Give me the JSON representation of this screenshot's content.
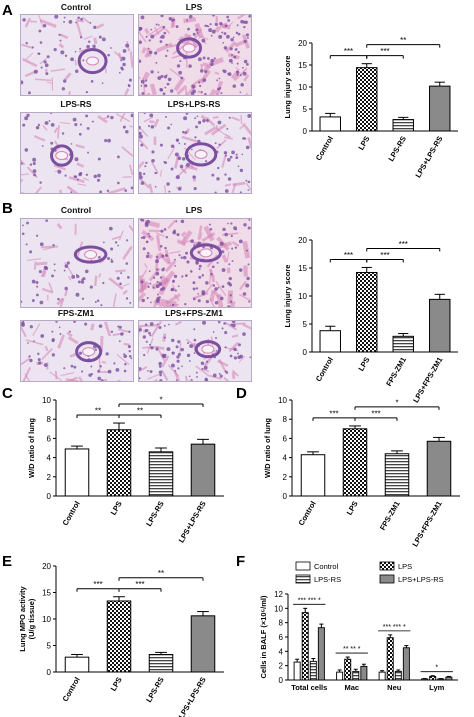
{
  "panels": {
    "A": {
      "letter": "A",
      "images": [
        "Control",
        "LPS",
        "LPS-RS",
        "LPS+LPS-RS"
      ]
    },
    "B": {
      "letter": "B",
      "images": [
        "Control",
        "LPS",
        "FPS-ZM1",
        "LPS+FPS-ZM1"
      ]
    },
    "C": {
      "letter": "C"
    },
    "D": {
      "letter": "D"
    },
    "E": {
      "letter": "E"
    },
    "F": {
      "letter": "F"
    }
  },
  "colors": {
    "tissue_bg": "#ece4f0",
    "tissue_bg_lps": "#f0dbe9",
    "stain_purple": "#7b4fa0",
    "stain_pink": "#d67fb4",
    "bar_outline": "#000000"
  },
  "chart_data": [
    {
      "id": "A",
      "type": "bar",
      "categories": [
        "Control",
        "LPS",
        "LPS-RS",
        "LPS+LPS-RS"
      ],
      "values": [
        3.2,
        14.4,
        2.6,
        10.2
      ],
      "errors": [
        0.8,
        0.9,
        0.5,
        0.9
      ],
      "patterns": [
        "white",
        "checker",
        "hlines",
        "solid-gray"
      ],
      "ylabel": "Lung injury score",
      "ylim": [
        0,
        20
      ],
      "yticks": [
        "0",
        "5",
        "10",
        "15",
        "20"
      ],
      "significance": [
        {
          "from": 1,
          "to": 2,
          "label": "***",
          "level": 1
        },
        {
          "from": 0,
          "to": 1,
          "label": "***",
          "level": 1
        },
        {
          "from": 1,
          "to": 3,
          "label": "**",
          "level": 2
        }
      ]
    },
    {
      "id": "B",
      "type": "bar",
      "categories": [
        "Control",
        "LPS",
        "FPS-ZM1",
        "LPS+FPS-ZM1"
      ],
      "values": [
        3.8,
        14.2,
        2.8,
        9.4
      ],
      "errors": [
        0.8,
        0.9,
        0.5,
        0.9
      ],
      "patterns": [
        "white",
        "checker",
        "hlines",
        "solid-gray"
      ],
      "ylabel": "Lung injury score",
      "ylim": [
        0,
        20
      ],
      "yticks": [
        "0",
        "5",
        "10",
        "15",
        "20"
      ],
      "significance": [
        {
          "from": 0,
          "to": 1,
          "label": "***",
          "level": 1
        },
        {
          "from": 1,
          "to": 2,
          "label": "***",
          "level": 1
        },
        {
          "from": 1,
          "to": 3,
          "label": "***",
          "level": 2
        }
      ]
    },
    {
      "id": "C",
      "type": "bar",
      "categories": [
        "Control",
        "LPS",
        "LPS-RS",
        "LPS+LPS-RS"
      ],
      "values": [
        4.9,
        6.9,
        4.6,
        5.4
      ],
      "errors": [
        0.3,
        0.7,
        0.4,
        0.5
      ],
      "patterns": [
        "white",
        "checker",
        "hlines",
        "solid-gray"
      ],
      "ylabel": "W/D ratio of lung",
      "ylim": [
        0,
        10
      ],
      "yticks": [
        "0",
        "2",
        "4",
        "6",
        "8",
        "10"
      ],
      "significance": [
        {
          "from": 0,
          "to": 1,
          "label": "**",
          "level": 1
        },
        {
          "from": 1,
          "to": 2,
          "label": "**",
          "level": 1
        },
        {
          "from": 1,
          "to": 3,
          "label": "*",
          "level": 2
        }
      ]
    },
    {
      "id": "D",
      "type": "bar",
      "categories": [
        "Control",
        "LPS",
        "FPS-ZM1",
        "LPS+FPS-ZM1"
      ],
      "values": [
        4.3,
        7.0,
        4.4,
        5.7
      ],
      "errors": [
        0.3,
        0.3,
        0.3,
        0.4
      ],
      "patterns": [
        "white",
        "checker",
        "hlines",
        "solid-gray"
      ],
      "ylabel": "W/D ratio of lung",
      "ylim": [
        0,
        10
      ],
      "yticks": [
        "0",
        "2",
        "4",
        "6",
        "8",
        "10"
      ],
      "significance": [
        {
          "from": 0,
          "to": 1,
          "label": "***",
          "level": 1
        },
        {
          "from": 1,
          "to": 2,
          "label": "***",
          "level": 1
        },
        {
          "from": 1,
          "to": 3,
          "label": "*",
          "level": 2
        }
      ]
    },
    {
      "id": "E",
      "type": "bar",
      "categories": [
        "Control",
        "LPS",
        "LPS-RS",
        "LPS+LPS-RS"
      ],
      "values": [
        2.8,
        13.4,
        3.3,
        10.6
      ],
      "errors": [
        0.5,
        0.8,
        0.4,
        0.8
      ],
      "patterns": [
        "white",
        "checker",
        "hlines",
        "solid-gray"
      ],
      "ylabel": "Lung MPO activity\n(U/g tissue)",
      "ylim": [
        0,
        20
      ],
      "yticks": [
        "0",
        "5",
        "10",
        "15",
        "20"
      ],
      "significance": [
        {
          "from": 0,
          "to": 1,
          "label": "***",
          "level": 1
        },
        {
          "from": 1,
          "to": 2,
          "label": "***",
          "level": 1
        },
        {
          "from": 1,
          "to": 3,
          "label": "**",
          "level": 2
        }
      ]
    },
    {
      "id": "F",
      "type": "bar",
      "categories": [
        "Total cells",
        "Mac",
        "Neu",
        "Lym"
      ],
      "series": [
        {
          "name": "Control",
          "values": [
            2.5,
            1.1,
            1.1,
            0.15
          ],
          "errors": [
            0.4,
            0.3,
            0.2,
            0.05
          ],
          "pattern": "white"
        },
        {
          "name": "LPS",
          "values": [
            9.4,
            2.9,
            5.9,
            0.5
          ],
          "errors": [
            0.6,
            0.3,
            0.4,
            0.1
          ],
          "pattern": "checker"
        },
        {
          "name": "LPS-RS",
          "values": [
            2.6,
            1.2,
            1.2,
            0.15
          ],
          "errors": [
            0.4,
            0.3,
            0.2,
            0.05
          ],
          "pattern": "hlines"
        },
        {
          "name": "LPS+LPS-RS",
          "values": [
            7.3,
            1.9,
            4.5,
            0.4
          ],
          "errors": [
            0.5,
            0.3,
            0.3,
            0.1
          ],
          "pattern": "solid-gray"
        }
      ],
      "ylabel": "Cells in BALF (×10⁵/ml)",
      "ylim": [
        0,
        12
      ],
      "yticks": [
        "0",
        "2",
        "4",
        "6",
        "8",
        "10",
        "12"
      ],
      "legend_position": "top",
      "group_annotations": [
        {
          "group": 0,
          "labels": [
            "***",
            "***",
            "*"
          ]
        },
        {
          "group": 1,
          "labels": [
            "**",
            "**",
            "*"
          ]
        },
        {
          "group": 2,
          "labels": [
            "***",
            "***",
            "*"
          ]
        },
        {
          "group": 3,
          "labels": [
            "*"
          ]
        }
      ]
    }
  ]
}
